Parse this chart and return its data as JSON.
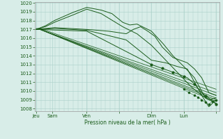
{
  "bg_color": "#d8ede8",
  "grid_color": "#aacfc8",
  "line_color": "#1a5c1a",
  "ylim": [
    1008,
    1020
  ],
  "yticks": [
    1008,
    1009,
    1010,
    1011,
    1012,
    1013,
    1014,
    1015,
    1016,
    1017,
    1018,
    1019,
    1020
  ],
  "xlabel": "Pression niveau de la mer( hPa )",
  "xtick_labels": [
    "Jeu",
    "Sam",
    "Ven",
    "",
    "Dim",
    "Lun",
    ""
  ],
  "xtick_positions": [
    0.0,
    0.09,
    0.28,
    0.46,
    0.64,
    0.82,
    1.0
  ],
  "text_color": "#1a5c1a",
  "line_width": 0.7
}
